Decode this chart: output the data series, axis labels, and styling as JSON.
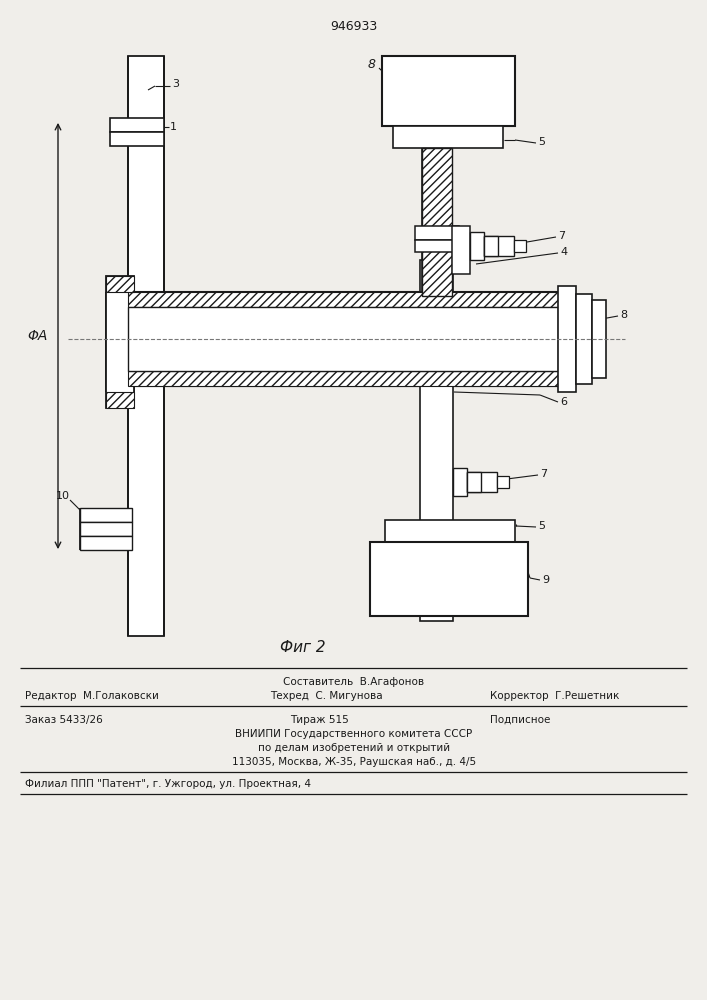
{
  "title": "946933",
  "bg": "#f0eeea",
  "lc": "#1a1a1a",
  "fig_caption": "Фиг 2",
  "footer": {
    "line1_center": "Составитель  В.Агафонов",
    "line2_left": "Редактор  М.Голаковски",
    "line2_center": "Техред  С. Мигунова",
    "line2_right": "Корректор  Г.Решетник",
    "line3_left": "Заказ 5433/26",
    "line3_center": "Тираж 515",
    "line3_right": "Подписное",
    "line4": "ВНИИПИ Государственного комитета СССР",
    "line5": "по делам изобретений и открытий",
    "line6": "113035, Москва, Ж-35, Раушская наб., д. 4/5",
    "line7": "Филиал ППП \"Патент\", г. Ужгород, ул. Проектная, 4"
  }
}
